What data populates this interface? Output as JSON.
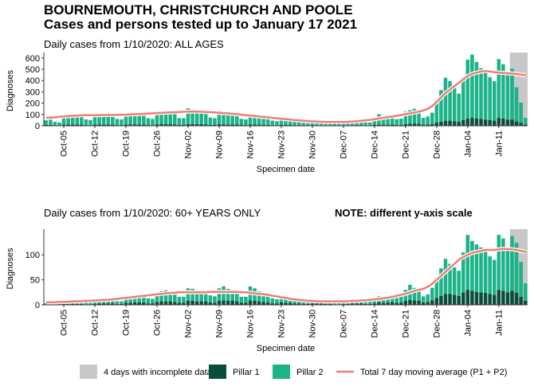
{
  "title": "BOURNEMOUTH, CHRISTCHURCH AND POOLE",
  "subtitle": "Cases and persons tested up to January 17 2021",
  "incomplete": {
    "name": "4 days with incomplete data",
    "days": 4,
    "color": "#c8c8c8"
  },
  "chart_data": [
    {
      "type": "bar",
      "stacked": true,
      "title": "Daily cases from 1/10/2020: ALL AGES",
      "ylabel": "Diagnoses",
      "xlabel": "Specimen date",
      "ylim": [
        0,
        620
      ],
      "yticks": [
        0,
        100,
        200,
        300,
        400,
        500,
        600
      ],
      "categories": [
        null,
        null,
        null,
        null,
        "Oct-05",
        null,
        null,
        null,
        null,
        null,
        null,
        "Oct-12",
        null,
        null,
        null,
        null,
        null,
        null,
        "Oct-19",
        null,
        null,
        null,
        null,
        null,
        null,
        "Oct-26",
        null,
        null,
        null,
        null,
        null,
        null,
        "Nov-02",
        null,
        null,
        null,
        null,
        null,
        null,
        "Nov-09",
        null,
        null,
        null,
        null,
        null,
        null,
        "Nov-16",
        null,
        null,
        null,
        null,
        null,
        null,
        "Nov-23",
        null,
        null,
        null,
        null,
        null,
        null,
        "Nov-30",
        null,
        null,
        null,
        null,
        null,
        null,
        "Dec-07",
        null,
        null,
        null,
        null,
        null,
        null,
        "Dec-14",
        null,
        null,
        null,
        null,
        null,
        null,
        "Dec-21",
        null,
        null,
        null,
        null,
        null,
        null,
        "Dec-28",
        null,
        null,
        null,
        null,
        null,
        null,
        "Jan-04",
        null,
        null,
        null,
        null,
        null,
        null,
        "Jan-11",
        null,
        null,
        null,
        null,
        null,
        null
      ],
      "series": [
        {
          "name": "Pillar 1",
          "color": "#0b4d3c",
          "values": [
            8,
            9,
            5,
            4,
            10,
            11,
            12,
            12,
            10,
            6,
            5,
            11,
            12,
            12,
            12,
            10,
            6,
            6,
            12,
            13,
            13,
            12,
            11,
            7,
            6,
            13,
            14,
            14,
            14,
            13,
            8,
            7,
            15,
            15,
            14,
            14,
            13,
            8,
            7,
            14,
            13,
            12,
            12,
            11,
            7,
            6,
            12,
            11,
            10,
            9,
            8,
            5,
            5,
            8,
            7,
            7,
            6,
            6,
            4,
            3,
            6,
            5,
            5,
            5,
            5,
            3,
            3,
            5,
            5,
            6,
            6,
            6,
            4,
            4,
            8,
            12,
            10,
            10,
            11,
            8,
            8,
            15,
            18,
            20,
            18,
            10,
            12,
            16,
            28,
            35,
            45,
            45,
            40,
            35,
            50,
            65,
            70,
            65,
            60,
            55,
            50,
            45,
            70,
            65,
            55,
            55,
            40,
            25,
            10
          ]
        },
        {
          "name": "Pillar 2",
          "color": "#1db389",
          "values": [
            40,
            45,
            30,
            25,
            70,
            80,
            90,
            95,
            85,
            50,
            45,
            85,
            90,
            95,
            90,
            80,
            55,
            50,
            95,
            100,
            105,
            100,
            90,
            60,
            55,
            100,
            110,
            110,
            105,
            100,
            60,
            60,
            140,
            130,
            120,
            115,
            105,
            65,
            60,
            120,
            115,
            105,
            100,
            95,
            55,
            50,
            95,
            90,
            80,
            75,
            65,
            40,
            35,
            60,
            55,
            50,
            45,
            40,
            25,
            20,
            40,
            35,
            30,
            30,
            28,
            18,
            15,
            30,
            30,
            32,
            35,
            35,
            25,
            25,
            50,
            90,
            60,
            65,
            70,
            50,
            55,
            110,
            120,
            130,
            110,
            60,
            70,
            100,
            200,
            280,
            380,
            350,
            300,
            250,
            380,
            520,
            560,
            500,
            450,
            420,
            380,
            350,
            520,
            480,
            400,
            450,
            300,
            180,
            60
          ]
        },
        {
          "name": "Total 7 day moving average (P1 + P2)",
          "type": "line",
          "color": "#f07c74",
          "values": [
            70,
            72,
            75,
            78,
            82,
            85,
            88,
            90,
            92,
            93,
            93,
            93,
            94,
            95,
            95,
            95,
            96,
            97,
            98,
            100,
            102,
            104,
            106,
            108,
            110,
            112,
            114,
            116,
            118,
            120,
            122,
            124,
            125,
            126,
            125,
            124,
            122,
            120,
            118,
            115,
            112,
            110,
            106,
            102,
            98,
            94,
            90,
            86,
            82,
            78,
            74,
            70,
            66,
            62,
            58,
            54,
            50,
            47,
            44,
            41,
            39,
            37,
            35,
            34,
            33,
            33,
            33,
            34,
            35,
            37,
            40,
            44,
            48,
            52,
            58,
            64,
            70,
            76,
            82,
            88,
            95,
            102,
            110,
            118,
            125,
            135,
            150,
            175,
            210,
            250,
            290,
            320,
            350,
            380,
            410,
            440,
            460,
            470,
            480,
            485,
            480,
            475,
            470,
            468,
            465,
            462,
            458,
            452,
            448
          ]
        }
      ]
    },
    {
      "type": "bar",
      "stacked": true,
      "title": "Daily cases from 1/10/2020: 60+ YEARS ONLY",
      "note": "NOTE: different y-axis scale",
      "ylabel": "Diagnoses",
      "xlabel": "Specimen date",
      "ylim": [
        0,
        145
      ],
      "yticks": [
        0,
        50,
        100
      ],
      "categories": [
        null,
        null,
        null,
        null,
        "Oct-05",
        null,
        null,
        null,
        null,
        null,
        null,
        "Oct-12",
        null,
        null,
        null,
        null,
        null,
        null,
        "Oct-19",
        null,
        null,
        null,
        null,
        null,
        null,
        "Oct-26",
        null,
        null,
        null,
        null,
        null,
        null,
        "Nov-02",
        null,
        null,
        null,
        null,
        null,
        null,
        "Nov-09",
        null,
        null,
        null,
        null,
        null,
        null,
        "Nov-16",
        null,
        null,
        null,
        null,
        null,
        null,
        "Nov-23",
        null,
        null,
        null,
        null,
        null,
        null,
        "Nov-30",
        null,
        null,
        null,
        null,
        null,
        null,
        "Dec-07",
        null,
        null,
        null,
        null,
        null,
        null,
        "Dec-14",
        null,
        null,
        null,
        null,
        null,
        null,
        "Dec-21",
        null,
        null,
        null,
        null,
        null,
        null,
        "Dec-28",
        null,
        null,
        null,
        null,
        null,
        null,
        "Jan-04",
        null,
        null,
        null,
        null,
        null,
        null,
        "Jan-11",
        null,
        null,
        null,
        null,
        null,
        null
      ],
      "series": [
        {
          "name": "Pillar 1",
          "color": "#0b4d3c",
          "values": [
            1,
            1,
            1,
            1,
            2,
            2,
            2,
            2,
            2,
            1,
            1,
            2,
            3,
            3,
            3,
            3,
            2,
            2,
            4,
            4,
            5,
            5,
            5,
            3,
            3,
            6,
            7,
            7,
            7,
            6,
            4,
            4,
            8,
            8,
            7,
            7,
            7,
            5,
            4,
            8,
            9,
            8,
            8,
            7,
            4,
            4,
            9,
            8,
            7,
            6,
            5,
            3,
            3,
            5,
            4,
            4,
            3,
            3,
            2,
            2,
            3,
            3,
            3,
            2,
            2,
            1,
            1,
            2,
            2,
            3,
            3,
            3,
            2,
            2,
            3,
            5,
            4,
            5,
            6,
            4,
            5,
            8,
            10,
            9,
            8,
            5,
            6,
            9,
            14,
            18,
            22,
            22,
            20,
            18,
            25,
            30,
            28,
            26,
            25,
            24,
            22,
            20,
            30,
            28,
            25,
            28,
            24,
            16,
            8
          ]
        },
        {
          "name": "Pillar 2",
          "color": "#1db389",
          "values": [
            2,
            3,
            2,
            2,
            4,
            5,
            5,
            5,
            5,
            3,
            3,
            6,
            7,
            8,
            8,
            8,
            5,
            5,
            12,
            14,
            15,
            15,
            14,
            10,
            9,
            18,
            20,
            22,
            20,
            18,
            12,
            12,
            25,
            24,
            22,
            22,
            20,
            14,
            13,
            25,
            28,
            24,
            22,
            20,
            12,
            12,
            28,
            25,
            20,
            18,
            15,
            10,
            8,
            14,
            12,
            10,
            9,
            8,
            5,
            4,
            7,
            6,
            6,
            5,
            5,
            3,
            3,
            5,
            5,
            6,
            6,
            7,
            5,
            5,
            8,
            12,
            10,
            12,
            14,
            10,
            12,
            22,
            30,
            25,
            20,
            12,
            15,
            25,
            40,
            55,
            70,
            60,
            55,
            50,
            80,
            110,
            100,
            95,
            90,
            85,
            75,
            70,
            110,
            105,
            90,
            110,
            100,
            70,
            35
          ]
        },
        {
          "name": "Total 7 day moving average (P1 + P2)",
          "type": "line",
          "color": "#f07c74",
          "values": [
            5,
            5,
            5,
            6,
            6,
            6,
            7,
            7,
            7,
            8,
            8,
            9,
            9,
            10,
            10,
            11,
            12,
            13,
            14,
            15,
            16,
            17,
            18,
            19,
            20,
            21,
            22,
            23,
            24,
            24,
            25,
            25,
            25,
            25,
            25,
            25,
            25,
            26,
            26,
            26,
            26,
            26,
            26,
            26,
            25,
            25,
            24,
            23,
            22,
            21,
            20,
            18,
            17,
            15,
            14,
            12,
            11,
            10,
            9,
            8,
            8,
            7,
            7,
            7,
            7,
            7,
            7,
            7,
            7,
            8,
            8,
            9,
            9,
            10,
            11,
            12,
            13,
            14,
            16,
            18,
            20,
            22,
            25,
            28,
            30,
            32,
            36,
            42,
            50,
            58,
            66,
            74,
            82,
            90,
            96,
            100,
            104,
            106,
            108,
            110,
            110,
            110,
            111,
            112,
            112,
            111,
            110,
            108,
            106
          ]
        }
      ]
    }
  ]
}
